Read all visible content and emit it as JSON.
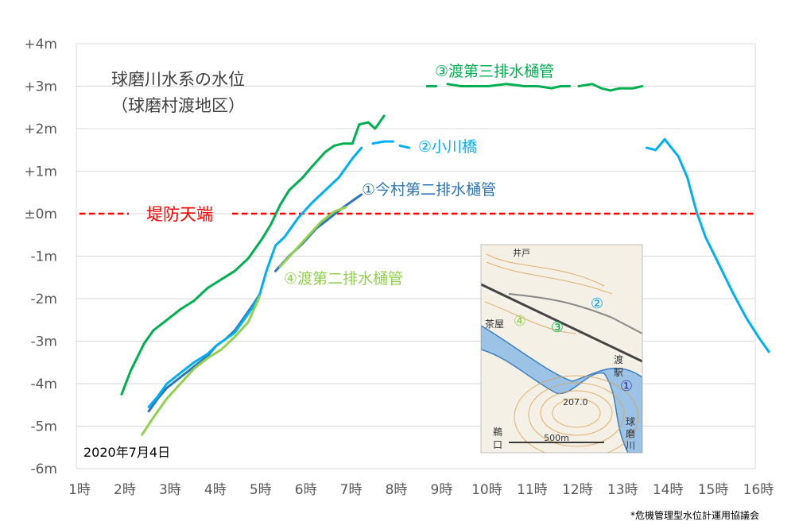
{
  "chart_data": {
    "type": "line",
    "title": "球磨川水系の水位",
    "subtitle": "（球磨村渡地区）",
    "date_label": "2020年7月4日",
    "source_note": "*危機管理型水位計運用協議会",
    "x_tick_labels": [
      "1時",
      "2時",
      "3時",
      "4時",
      "5時",
      "6時",
      "7時",
      "8時",
      "9時",
      "10時",
      "11時",
      "12時",
      "13時",
      "14時",
      "15時",
      "16時"
    ],
    "y_tick_labels": [
      "+4m",
      "+3m",
      "+2m",
      "+1m",
      "±0m",
      "-1m",
      "-2m",
      "-3m",
      "-4m",
      "-5m",
      "-6m"
    ],
    "xlim": [
      1,
      16
    ],
    "ylim": [
      -6,
      4
    ],
    "grid": "horizontal",
    "reference_line": {
      "label": "堤防天端",
      "y": 0,
      "color": "#ff0000"
    },
    "series": [
      {
        "name": "①今村第二排水樋管",
        "color": "#2e75b6",
        "segments": [
          [
            [
              2.6,
              -4.65
            ],
            [
              2.8,
              -4.35
            ],
            [
              3.0,
              -4.1
            ],
            [
              3.3,
              -3.85
            ],
            [
              3.6,
              -3.6
            ],
            [
              3.9,
              -3.35
            ],
            [
              4.1,
              -3.1
            ],
            [
              4.3,
              -2.95
            ],
            [
              4.5,
              -2.75
            ],
            [
              4.7,
              -2.45
            ],
            [
              4.9,
              -2.15
            ],
            [
              5.05,
              -1.9
            ]
          ],
          [
            [
              5.4,
              -1.35
            ],
            [
              5.7,
              -1.0
            ],
            [
              6.0,
              -0.7
            ],
            [
              6.3,
              -0.35
            ],
            [
              6.6,
              -0.1
            ],
            [
              6.9,
              0.15
            ],
            [
              7.1,
              0.3
            ],
            [
              7.3,
              0.45
            ]
          ]
        ]
      },
      {
        "name": "②小川橋",
        "color": "#00b0f0",
        "segments": [
          [
            [
              2.6,
              -4.55
            ],
            [
              2.8,
              -4.3
            ],
            [
              3.0,
              -4.0
            ],
            [
              3.3,
              -3.75
            ],
            [
              3.6,
              -3.5
            ],
            [
              3.9,
              -3.3
            ],
            [
              4.1,
              -3.1
            ],
            [
              4.3,
              -2.95
            ],
            [
              4.5,
              -2.8
            ],
            [
              4.7,
              -2.5
            ],
            [
              4.9,
              -2.2
            ],
            [
              5.05,
              -1.9
            ],
            [
              5.2,
              -1.35
            ],
            [
              5.4,
              -0.75
            ],
            [
              5.6,
              -0.55
            ],
            [
              5.9,
              -0.1
            ],
            [
              6.2,
              0.25
            ],
            [
              6.5,
              0.55
            ],
            [
              6.8,
              0.85
            ],
            [
              7.1,
              1.3
            ],
            [
              7.3,
              1.55
            ]
          ],
          [
            [
              7.55,
              1.65
            ],
            [
              7.8,
              1.7
            ],
            [
              8.0,
              1.7
            ]
          ],
          [
            [
              8.15,
              1.6
            ],
            [
              8.35,
              1.55
            ]
          ],
          [
            [
              13.6,
              1.55
            ],
            [
              13.8,
              1.5
            ]
          ],
          [
            [
              13.8,
              1.5
            ],
            [
              14.0,
              1.75
            ],
            [
              14.3,
              1.35
            ],
            [
              14.5,
              0.85
            ],
            [
              14.7,
              0.05
            ],
            [
              14.9,
              -0.55
            ],
            [
              15.2,
              -1.2
            ],
            [
              15.5,
              -1.85
            ],
            [
              15.8,
              -2.45
            ],
            [
              16.1,
              -2.95
            ],
            [
              16.3,
              -3.25
            ]
          ]
        ]
      },
      {
        "name": "③渡第三排水樋管",
        "color": "#00b050",
        "segments": [
          [
            [
              2.0,
              -4.25
            ],
            [
              2.2,
              -3.7
            ],
            [
              2.5,
              -3.05
            ],
            [
              2.7,
              -2.75
            ],
            [
              3.0,
              -2.5
            ],
            [
              3.3,
              -2.25
            ],
            [
              3.6,
              -2.05
            ],
            [
              3.9,
              -1.75
            ],
            [
              4.2,
              -1.55
            ],
            [
              4.5,
              -1.35
            ],
            [
              4.8,
              -1.05
            ],
            [
              5.1,
              -0.6
            ],
            [
              5.3,
              -0.25
            ],
            [
              5.5,
              0.2
            ],
            [
              5.7,
              0.55
            ],
            [
              6.0,
              0.85
            ],
            [
              6.2,
              1.1
            ],
            [
              6.5,
              1.45
            ],
            [
              6.7,
              1.6
            ],
            [
              6.9,
              1.65
            ],
            [
              7.1,
              1.65
            ],
            [
              7.25,
              2.1
            ],
            [
              7.45,
              2.15
            ],
            [
              7.6,
              2.0
            ],
            [
              7.8,
              2.3
            ]
          ],
          [
            [
              8.75,
              3.0
            ],
            [
              8.95,
              3.0
            ]
          ],
          [
            [
              9.2,
              3.05
            ],
            [
              9.5,
              3.0
            ],
            [
              9.8,
              3.0
            ],
            [
              10.1,
              3.0
            ],
            [
              10.5,
              3.05
            ],
            [
              10.9,
              3.0
            ],
            [
              11.2,
              3.0
            ],
            [
              11.5,
              2.95
            ],
            [
              11.7,
              3.0
            ],
            [
              11.9,
              3.0
            ]
          ],
          [
            [
              12.1,
              3.0
            ],
            [
              12.4,
              3.05
            ],
            [
              12.6,
              2.95
            ],
            [
              12.8,
              2.9
            ],
            [
              13.0,
              2.95
            ],
            [
              13.2,
              2.95
            ],
            [
              13.3,
              2.95
            ],
            [
              13.5,
              3.0
            ]
          ]
        ]
      },
      {
        "name": "④渡第二排水樋管",
        "color": "#92d050",
        "segments": [
          [
            [
              2.45,
              -5.2
            ],
            [
              2.7,
              -4.8
            ],
            [
              3.0,
              -4.35
            ],
            [
              3.3,
              -4.0
            ],
            [
              3.6,
              -3.65
            ],
            [
              3.9,
              -3.4
            ],
            [
              4.2,
              -3.2
            ],
            [
              4.5,
              -2.9
            ],
            [
              4.8,
              -2.55
            ],
            [
              5.05,
              -1.95
            ]
          ],
          [
            [
              5.5,
              -1.25
            ],
            [
              5.8,
              -0.9
            ],
            [
              6.1,
              -0.55
            ],
            [
              6.4,
              -0.2
            ],
            [
              6.7,
              0.05
            ],
            [
              6.95,
              0.15
            ]
          ]
        ]
      }
    ]
  },
  "map": {
    "labels": [
      "井戸",
      "茶屋",
      "渡",
      "駅",
      "207.0",
      "鵜",
      "口",
      "球",
      "磨",
      "川",
      "500m"
    ],
    "markers": [
      "①",
      "②",
      "③",
      "④"
    ]
  }
}
